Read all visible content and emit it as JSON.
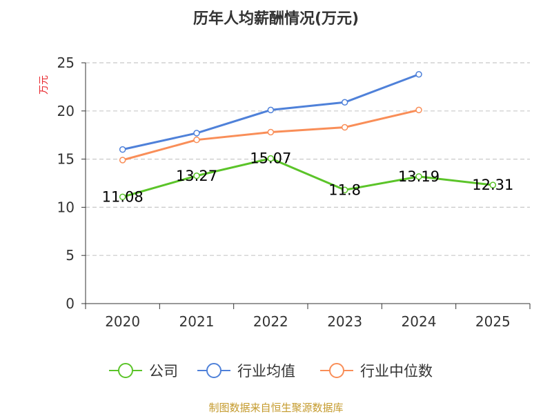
{
  "chart_data": {
    "type": "line",
    "title": "历年人均薪酬情况(万元)",
    "ylabel": "万元",
    "xlabel": "",
    "categories": [
      "2020",
      "2021",
      "2022",
      "2023",
      "2024",
      "2025"
    ],
    "ylim": [
      0,
      25
    ],
    "yticks": [
      0,
      5,
      10,
      15,
      20,
      25
    ],
    "grid": true,
    "legend_position": "bottom",
    "series": [
      {
        "name": "公司",
        "color": "#5bc429",
        "values": [
          11.08,
          13.27,
          15.07,
          11.8,
          13.19,
          12.31
        ],
        "labels": [
          "11.08",
          "13.27",
          "15.07",
          "11.8",
          "13.19",
          "12.31"
        ]
      },
      {
        "name": "行业均值",
        "color": "#4f81d9",
        "values": [
          16.0,
          17.7,
          20.1,
          20.9,
          23.8,
          null
        ]
      },
      {
        "name": "行业中位数",
        "color": "#f98e58",
        "values": [
          14.9,
          17.0,
          17.8,
          18.3,
          20.1,
          null
        ]
      }
    ]
  },
  "ylabel_color": "#e8252b",
  "footer": {
    "source": "制图数据来自恒生聚源数据库",
    "color": "#c49a2c"
  }
}
